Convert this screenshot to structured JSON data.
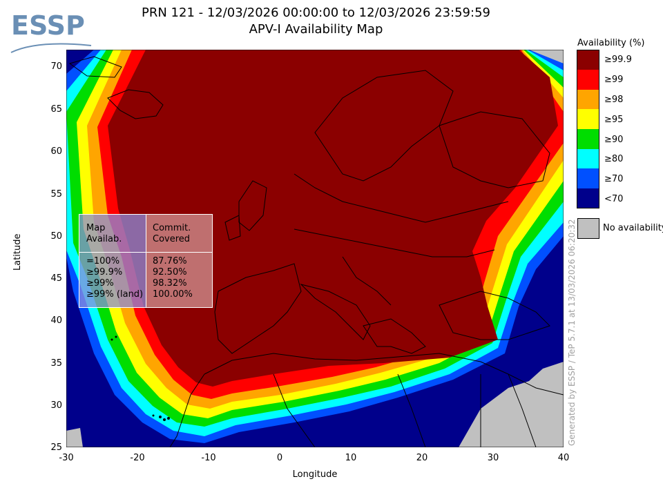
{
  "header": {
    "title_line1": "PRN 121 - 12/03/2026 00:00:00 to 12/03/2026 23:59:59",
    "title_line2": "APV-I Availability Map",
    "logo_text": "ESSP"
  },
  "axes": {
    "xlabel": "Longitude",
    "ylabel": "Latitude",
    "xticks": [
      -30,
      -20,
      -10,
      0,
      10,
      20,
      30,
      40
    ],
    "yticks": [
      70,
      65,
      60,
      55,
      50,
      45,
      40,
      35,
      30,
      25
    ],
    "xlim": [
      -30,
      40
    ],
    "ylim": [
      25,
      72.5
    ]
  },
  "legend": {
    "title": "Availability (%)",
    "items": [
      {
        "label": "≥99.9",
        "color": "#8b0000"
      },
      {
        "label": "≥99",
        "color": "#ff0000"
      },
      {
        "label": "≥98",
        "color": "#ffa500"
      },
      {
        "label": "≥95",
        "color": "#ffff00"
      },
      {
        "label": "≥90",
        "color": "#00dd00"
      },
      {
        "label": "≥80",
        "color": "#00ffff"
      },
      {
        "label": "≥70",
        "color": "#0050ff"
      },
      {
        "label": "<70",
        "color": "#00008b"
      }
    ],
    "no_availability": {
      "label": "No availability",
      "color": "#c0c0c0"
    }
  },
  "stats": {
    "col1_header": "Map\nAvailab.",
    "col2_header": "Commit.\nCovered",
    "rows": [
      {
        "level": "=100%",
        "value": "87.76%"
      },
      {
        "level": "≥99.9%",
        "value": "92.50%"
      },
      {
        "level": "≥99%",
        "value": "98.32%"
      },
      {
        "level": "≥99% (land)",
        "value": "100.00%"
      }
    ]
  },
  "credit": "Generated by ESSP / TeP 5.7.1 at 13/03/2026 06:20:32"
}
